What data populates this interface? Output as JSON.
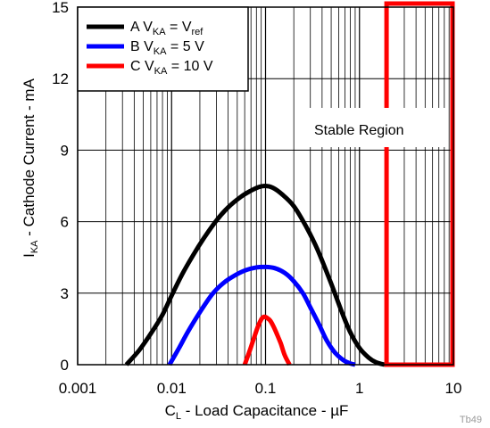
{
  "chart_data": {
    "type": "line",
    "xscale": "log",
    "xlim": [
      0.001,
      10
    ],
    "ylim": [
      0,
      15
    ],
    "grid": true,
    "xlabel_main": "C",
    "xlabel_sub": "L",
    "xlabel_rest": " - Load Capacitance - µF",
    "ylabel_main": "I",
    "ylabel_sub": "KA",
    "ylabel_rest": " - Cathode Current - mA",
    "xticks": [
      {
        "value": 0.001,
        "label": "0.001"
      },
      {
        "value": 0.01,
        "label": "0.01"
      },
      {
        "value": 0.1,
        "label": "0.1"
      },
      {
        "value": 1,
        "label": "1"
      },
      {
        "value": 10,
        "label": "10"
      }
    ],
    "yticks": [
      {
        "value": 0,
        "label": "0"
      },
      {
        "value": 3,
        "label": "3"
      },
      {
        "value": 6,
        "label": "6"
      },
      {
        "value": 9,
        "label": "9"
      },
      {
        "value": 12,
        "label": "12"
      },
      {
        "value": 15,
        "label": "15"
      }
    ],
    "legend_position": "top-left",
    "series": [
      {
        "id": "A",
        "legend": {
          "pre": "A V",
          "sub1": "KA",
          "mid": " = V",
          "sub2": "ref"
        },
        "color": "#000000",
        "x": [
          0.0033,
          0.0045,
          0.006,
          0.008,
          0.01,
          0.013,
          0.017,
          0.022,
          0.03,
          0.04,
          0.055,
          0.07,
          0.085,
          0.1,
          0.12,
          0.15,
          0.2,
          0.27,
          0.36,
          0.5,
          0.65,
          0.8,
          1.0,
          1.25,
          1.5,
          1.85
        ],
        "y": [
          0,
          0.6,
          1.3,
          2.1,
          2.9,
          3.8,
          4.6,
          5.3,
          6.05,
          6.6,
          7.05,
          7.3,
          7.45,
          7.5,
          7.42,
          7.15,
          6.65,
          5.8,
          4.8,
          3.4,
          2.2,
          1.35,
          0.7,
          0.3,
          0.1,
          0
        ]
      },
      {
        "id": "B",
        "legend": {
          "pre": "B V",
          "sub1": "KA",
          "mid": " = 5 V",
          "sub2": ""
        },
        "color": "#0000ff",
        "x": [
          0.0095,
          0.012,
          0.015,
          0.02,
          0.027,
          0.035,
          0.045,
          0.06,
          0.08,
          0.1,
          0.125,
          0.16,
          0.2,
          0.25,
          0.3,
          0.37,
          0.45,
          0.55,
          0.68,
          0.8,
          0.9
        ],
        "y": [
          0,
          0.7,
          1.4,
          2.2,
          2.95,
          3.4,
          3.7,
          3.95,
          4.08,
          4.1,
          4.05,
          3.85,
          3.5,
          3.0,
          2.4,
          1.7,
          1.0,
          0.5,
          0.18,
          0.05,
          0
        ]
      },
      {
        "id": "C",
        "legend": {
          "pre": "C V",
          "sub1": "KA",
          "mid": " = 10 V",
          "sub2": ""
        },
        "color": "#ff0000",
        "x": [
          0.06,
          0.068,
          0.075,
          0.083,
          0.09,
          0.095,
          0.1,
          0.105,
          0.112,
          0.12,
          0.13,
          0.145,
          0.16,
          0.18
        ],
        "y": [
          0,
          0.6,
          1.1,
          1.6,
          1.9,
          2.0,
          2.0,
          1.95,
          1.85,
          1.65,
          1.35,
          0.9,
          0.4,
          0
        ]
      }
    ],
    "stable_region": {
      "label": "Stable Region",
      "x_from": 1.9,
      "x_to": 10,
      "color": "#ff0000"
    },
    "figure_id": "Tb49"
  }
}
